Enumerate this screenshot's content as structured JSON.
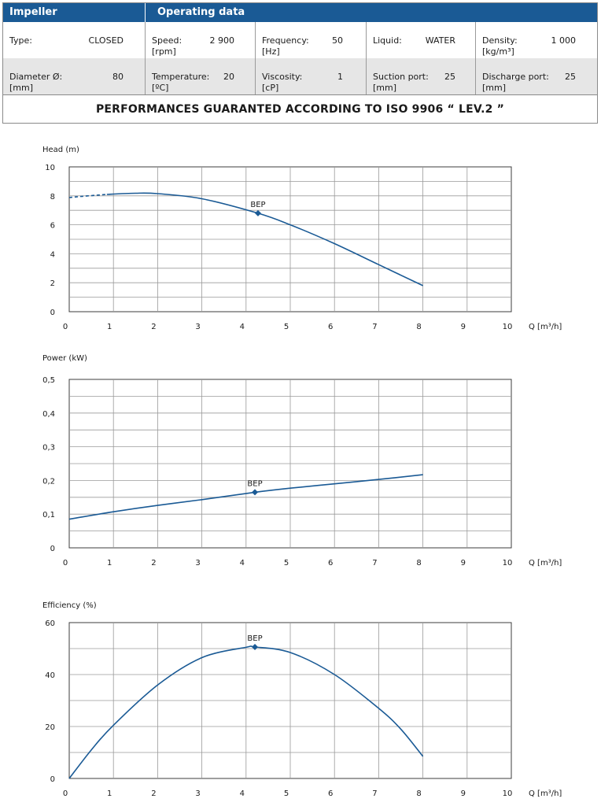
{
  "header": {
    "impeller": "Impeller",
    "operating": "Operating data"
  },
  "specs": {
    "type_label": "Type:",
    "type_value": "CLOSED",
    "speed_label": "Speed:",
    "speed_unit": "[rpm]",
    "speed_value": "2 900",
    "frequency_label": "Frequency:",
    "frequency_unit": "[Hz]",
    "frequency_value": "50",
    "liquid_label": "Liquid:",
    "liquid_value": "WATER",
    "density_label": "Density:",
    "density_unit": "[kg/m³]",
    "density_value": "1 000",
    "diameter_label": "Diameter Ø:",
    "diameter_unit": "[mm]",
    "diameter_value": "80",
    "temperature_label": "Temperature:",
    "temperature_unit": "[ºC]",
    "temperature_value": "20",
    "viscosity_label": "Viscosity:",
    "viscosity_unit": "[cP]",
    "viscosity_value": "1",
    "suction_label": "Suction port:",
    "suction_unit": "[mm]",
    "suction_value": "25",
    "discharge_label": "Discharge port:",
    "discharge_unit": "[mm]",
    "discharge_value": "25"
  },
  "guarantee": "PERFORMANCES GUARANTED ACCORDING TO ISO 9906 “ LEV.2 ”",
  "chart_data": [
    {
      "type": "line",
      "ylabel": "Head (m)",
      "xlabel": "Q [m³/h]",
      "xlim": [
        0,
        10
      ],
      "ylim": [
        0,
        10
      ],
      "xticks": [
        "0",
        "1",
        "2",
        "3",
        "4",
        "5",
        "6",
        "7",
        "8",
        "9",
        "10"
      ],
      "yticks": [
        "0",
        "2",
        "4",
        "6",
        "8",
        "10"
      ],
      "grid": true,
      "color": "#1a5a95",
      "dashed_segment": {
        "x": [
          0,
          0.3,
          0.6,
          0.85
        ],
        "y": [
          7.88,
          7.97,
          8.04,
          8.1
        ]
      },
      "series": [
        {
          "x": [
            0.85,
            1.5,
            2,
            3,
            4.27,
            5,
            6,
            7,
            8
          ],
          "y": [
            8.1,
            8.18,
            8.15,
            7.8,
            6.8,
            6.0,
            4.7,
            3.25,
            1.8
          ]
        }
      ],
      "bep": {
        "x": 4.27,
        "y": 6.8,
        "label": "BEP"
      }
    },
    {
      "type": "line",
      "ylabel": "Power (kW)",
      "xlabel": "Q [m³/h]",
      "xlim": [
        0,
        10
      ],
      "ylim": [
        0,
        0.5
      ],
      "xticks": [
        "0",
        "1",
        "2",
        "3",
        "4",
        "5",
        "6",
        "7",
        "8",
        "9",
        "10"
      ],
      "yticks": [
        "0",
        "0,1",
        "0,2",
        "0,3",
        "0,4",
        "0,5"
      ],
      "grid": true,
      "color": "#1a5a95",
      "series": [
        {
          "x": [
            0,
            1,
            2,
            3,
            4.2,
            5,
            6,
            7,
            8
          ],
          "y": [
            0.085,
            0.107,
            0.126,
            0.143,
            0.165,
            0.177,
            0.19,
            0.203,
            0.217
          ]
        }
      ],
      "bep": {
        "x": 4.2,
        "y": 0.165,
        "label": "BEP"
      }
    },
    {
      "type": "line",
      "ylabel": "Efficiency (%)",
      "xlabel": "Q [m³/h]",
      "xlim": [
        0,
        10
      ],
      "ylim": [
        0,
        60
      ],
      "xticks": [
        "0",
        "1",
        "2",
        "3",
        "4",
        "5",
        "6",
        "7",
        "8",
        "9",
        "10"
      ],
      "yticks": [
        "0",
        "20",
        "40",
        "60"
      ],
      "grid": true,
      "color": "#1a5a95",
      "series": [
        {
          "x": [
            0,
            0.5,
            1,
            2,
            3,
            4,
            4.2,
            5,
            6,
            7,
            7.5,
            8
          ],
          "y": [
            0,
            11,
            20.5,
            36,
            46.5,
            50.5,
            50.6,
            48.5,
            40,
            27,
            19,
            8.5
          ]
        }
      ],
      "bep": {
        "x": 4.2,
        "y": 50.6,
        "label": "BEP"
      }
    }
  ]
}
